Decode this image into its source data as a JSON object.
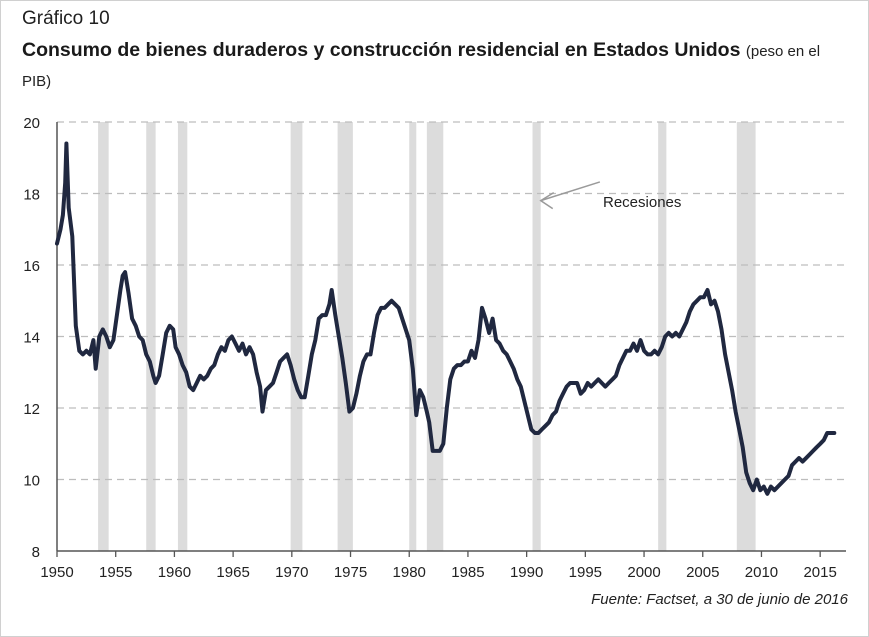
{
  "figure": {
    "label": "Gráfico 10",
    "title": "Consumo de bienes duraderos y construcción residencial en Estados Unidos",
    "subtitle": "(peso en el PIB)",
    "source": "Fuente: Factset, a 30 de junio de 2016"
  },
  "colors": {
    "line": "#202840",
    "recession": "#dcdcdc",
    "grid": "#bdbdbd",
    "axis": "#555555"
  },
  "chart_data": {
    "type": "line",
    "title": "Consumo de bienes duraderos y construcción residencial en Estados Unidos",
    "subtitle": "(peso en el PIB)",
    "xlim": [
      1950,
      2017.2
    ],
    "ylim": [
      8,
      20
    ],
    "xticks": [
      1950,
      1955,
      1960,
      1965,
      1970,
      1975,
      1980,
      1985,
      1990,
      1995,
      2000,
      2005,
      2010,
      2015
    ],
    "yticks": [
      8,
      10,
      12,
      14,
      16,
      18,
      20
    ],
    "grid": "horizontal dashed",
    "annotation": {
      "text": "Recesiones",
      "points_to": "recession band",
      "arrow_from": [
        1993,
        18.1
      ],
      "arrow_to": [
        1991.2,
        17.8
      ]
    },
    "recessions": [
      [
        1953.5,
        1954.4
      ],
      [
        1957.6,
        1958.4
      ],
      [
        1960.3,
        1961.1
      ],
      [
        1969.9,
        1970.9
      ],
      [
        1973.9,
        1975.2
      ],
      [
        1980.0,
        1980.6
      ],
      [
        1981.5,
        1982.9
      ],
      [
        1990.5,
        1991.2
      ],
      [
        2001.2,
        2001.9
      ],
      [
        2007.9,
        2009.5
      ]
    ],
    "series": [
      {
        "values": [
          [
            1950.0,
            16.6
          ],
          [
            1950.3,
            17.0
          ],
          [
            1950.5,
            17.4
          ],
          [
            1950.7,
            18.3
          ],
          [
            1950.8,
            19.4
          ],
          [
            1951.0,
            17.6
          ],
          [
            1951.3,
            16.8
          ],
          [
            1951.6,
            14.3
          ],
          [
            1951.9,
            13.6
          ],
          [
            1952.2,
            13.5
          ],
          [
            1952.5,
            13.6
          ],
          [
            1952.8,
            13.5
          ],
          [
            1953.1,
            13.9
          ],
          [
            1953.3,
            13.1
          ],
          [
            1953.6,
            14.0
          ],
          [
            1953.9,
            14.2
          ],
          [
            1954.2,
            14.0
          ],
          [
            1954.5,
            13.7
          ],
          [
            1954.8,
            13.9
          ],
          [
            1955.1,
            14.6
          ],
          [
            1955.4,
            15.3
          ],
          [
            1955.6,
            15.7
          ],
          [
            1955.8,
            15.8
          ],
          [
            1956.1,
            15.2
          ],
          [
            1956.4,
            14.5
          ],
          [
            1956.7,
            14.3
          ],
          [
            1957.0,
            14.0
          ],
          [
            1957.3,
            13.9
          ],
          [
            1957.6,
            13.5
          ],
          [
            1957.9,
            13.3
          ],
          [
            1958.2,
            12.9
          ],
          [
            1958.4,
            12.7
          ],
          [
            1958.7,
            12.9
          ],
          [
            1959.0,
            13.5
          ],
          [
            1959.3,
            14.1
          ],
          [
            1959.6,
            14.3
          ],
          [
            1959.9,
            14.2
          ],
          [
            1960.1,
            13.7
          ],
          [
            1960.4,
            13.5
          ],
          [
            1960.7,
            13.2
          ],
          [
            1961.0,
            13.0
          ],
          [
            1961.3,
            12.6
          ],
          [
            1961.6,
            12.5
          ],
          [
            1961.9,
            12.7
          ],
          [
            1962.2,
            12.9
          ],
          [
            1962.5,
            12.8
          ],
          [
            1962.8,
            12.9
          ],
          [
            1963.1,
            13.1
          ],
          [
            1963.4,
            13.2
          ],
          [
            1963.7,
            13.5
          ],
          [
            1964.0,
            13.7
          ],
          [
            1964.3,
            13.6
          ],
          [
            1964.6,
            13.9
          ],
          [
            1964.9,
            14.0
          ],
          [
            1965.2,
            13.8
          ],
          [
            1965.5,
            13.6
          ],
          [
            1965.8,
            13.8
          ],
          [
            1966.1,
            13.5
          ],
          [
            1966.4,
            13.7
          ],
          [
            1966.7,
            13.5
          ],
          [
            1967.0,
            13.0
          ],
          [
            1967.3,
            12.6
          ],
          [
            1967.5,
            11.9
          ],
          [
            1967.8,
            12.5
          ],
          [
            1968.1,
            12.6
          ],
          [
            1968.4,
            12.7
          ],
          [
            1968.7,
            13.0
          ],
          [
            1969.0,
            13.3
          ],
          [
            1969.3,
            13.4
          ],
          [
            1969.6,
            13.5
          ],
          [
            1969.9,
            13.2
          ],
          [
            1970.2,
            12.8
          ],
          [
            1970.5,
            12.5
          ],
          [
            1970.8,
            12.3
          ],
          [
            1971.1,
            12.3
          ],
          [
            1971.4,
            12.9
          ],
          [
            1971.7,
            13.5
          ],
          [
            1972.0,
            13.9
          ],
          [
            1972.3,
            14.5
          ],
          [
            1972.6,
            14.6
          ],
          [
            1972.9,
            14.6
          ],
          [
            1973.2,
            14.9
          ],
          [
            1973.4,
            15.3
          ],
          [
            1973.7,
            14.6
          ],
          [
            1974.0,
            14.0
          ],
          [
            1974.3,
            13.4
          ],
          [
            1974.6,
            12.7
          ],
          [
            1974.9,
            11.9
          ],
          [
            1975.2,
            12.0
          ],
          [
            1975.5,
            12.4
          ],
          [
            1975.8,
            12.9
          ],
          [
            1976.1,
            13.3
          ],
          [
            1976.4,
            13.5
          ],
          [
            1976.7,
            13.5
          ],
          [
            1977.0,
            14.1
          ],
          [
            1977.3,
            14.6
          ],
          [
            1977.6,
            14.8
          ],
          [
            1977.9,
            14.8
          ],
          [
            1978.2,
            14.9
          ],
          [
            1978.5,
            15.0
          ],
          [
            1978.8,
            14.9
          ],
          [
            1979.1,
            14.8
          ],
          [
            1979.4,
            14.5
          ],
          [
            1979.7,
            14.2
          ],
          [
            1980.0,
            13.9
          ],
          [
            1980.3,
            13.1
          ],
          [
            1980.6,
            11.8
          ],
          [
            1980.9,
            12.5
          ],
          [
            1981.2,
            12.3
          ],
          [
            1981.5,
            11.9
          ],
          [
            1981.7,
            11.6
          ],
          [
            1982.0,
            10.8
          ],
          [
            1982.3,
            10.8
          ],
          [
            1982.6,
            10.8
          ],
          [
            1982.9,
            11.0
          ],
          [
            1983.2,
            12.0
          ],
          [
            1983.5,
            12.8
          ],
          [
            1983.8,
            13.1
          ],
          [
            1984.1,
            13.2
          ],
          [
            1984.4,
            13.2
          ],
          [
            1984.7,
            13.3
          ],
          [
            1985.0,
            13.3
          ],
          [
            1985.3,
            13.6
          ],
          [
            1985.6,
            13.4
          ],
          [
            1985.9,
            13.9
          ],
          [
            1986.2,
            14.8
          ],
          [
            1986.5,
            14.5
          ],
          [
            1986.8,
            14.1
          ],
          [
            1987.1,
            14.5
          ],
          [
            1987.4,
            13.9
          ],
          [
            1987.7,
            13.8
          ],
          [
            1988.0,
            13.6
          ],
          [
            1988.3,
            13.5
          ],
          [
            1988.6,
            13.3
          ],
          [
            1988.9,
            13.1
          ],
          [
            1989.2,
            12.8
          ],
          [
            1989.5,
            12.6
          ],
          [
            1989.8,
            12.2
          ],
          [
            1990.1,
            11.8
          ],
          [
            1990.4,
            11.4
          ],
          [
            1990.7,
            11.3
          ],
          [
            1991.0,
            11.3
          ],
          [
            1991.3,
            11.4
          ],
          [
            1991.6,
            11.5
          ],
          [
            1991.9,
            11.6
          ],
          [
            1992.2,
            11.8
          ],
          [
            1992.5,
            11.9
          ],
          [
            1992.8,
            12.2
          ],
          [
            1993.1,
            12.4
          ],
          [
            1993.4,
            12.6
          ],
          [
            1993.7,
            12.7
          ],
          [
            1994.0,
            12.7
          ],
          [
            1994.3,
            12.7
          ],
          [
            1994.6,
            12.4
          ],
          [
            1994.9,
            12.5
          ],
          [
            1995.2,
            12.7
          ],
          [
            1995.5,
            12.6
          ],
          [
            1995.8,
            12.7
          ],
          [
            1996.1,
            12.8
          ],
          [
            1996.4,
            12.7
          ],
          [
            1996.7,
            12.6
          ],
          [
            1997.0,
            12.7
          ],
          [
            1997.3,
            12.8
          ],
          [
            1997.6,
            12.9
          ],
          [
            1997.9,
            13.2
          ],
          [
            1998.2,
            13.4
          ],
          [
            1998.5,
            13.6
          ],
          [
            1998.8,
            13.6
          ],
          [
            1999.1,
            13.8
          ],
          [
            1999.4,
            13.6
          ],
          [
            1999.7,
            13.9
          ],
          [
            2000.0,
            13.6
          ],
          [
            2000.3,
            13.5
          ],
          [
            2000.6,
            13.5
          ],
          [
            2000.9,
            13.6
          ],
          [
            2001.2,
            13.5
          ],
          [
            2001.5,
            13.7
          ],
          [
            2001.8,
            14.0
          ],
          [
            2002.1,
            14.1
          ],
          [
            2002.4,
            14.0
          ],
          [
            2002.7,
            14.1
          ],
          [
            2003.0,
            14.0
          ],
          [
            2003.3,
            14.2
          ],
          [
            2003.6,
            14.4
          ],
          [
            2003.9,
            14.7
          ],
          [
            2004.2,
            14.9
          ],
          [
            2004.5,
            15.0
          ],
          [
            2004.8,
            15.1
          ],
          [
            2005.1,
            15.1
          ],
          [
            2005.4,
            15.3
          ],
          [
            2005.7,
            14.9
          ],
          [
            2006.0,
            15.0
          ],
          [
            2006.3,
            14.7
          ],
          [
            2006.6,
            14.2
          ],
          [
            2006.9,
            13.5
          ],
          [
            2007.2,
            13.0
          ],
          [
            2007.5,
            12.5
          ],
          [
            2007.8,
            11.9
          ],
          [
            2008.1,
            11.4
          ],
          [
            2008.4,
            10.9
          ],
          [
            2008.7,
            10.2
          ],
          [
            2009.0,
            9.9
          ],
          [
            2009.3,
            9.7
          ],
          [
            2009.6,
            10.0
          ],
          [
            2009.9,
            9.7
          ],
          [
            2010.2,
            9.8
          ],
          [
            2010.5,
            9.6
          ],
          [
            2010.8,
            9.8
          ],
          [
            2011.1,
            9.7
          ],
          [
            2011.4,
            9.8
          ],
          [
            2011.7,
            9.9
          ],
          [
            2012.0,
            10.0
          ],
          [
            2012.3,
            10.1
          ],
          [
            2012.6,
            10.4
          ],
          [
            2012.9,
            10.5
          ],
          [
            2013.2,
            10.6
          ],
          [
            2013.5,
            10.5
          ],
          [
            2013.8,
            10.6
          ],
          [
            2014.1,
            10.7
          ],
          [
            2014.4,
            10.8
          ],
          [
            2014.7,
            10.9
          ],
          [
            2015.0,
            11.0
          ],
          [
            2015.3,
            11.1
          ],
          [
            2015.6,
            11.3
          ],
          [
            2015.9,
            11.3
          ],
          [
            2016.2,
            11.3
          ]
        ]
      }
    ]
  }
}
